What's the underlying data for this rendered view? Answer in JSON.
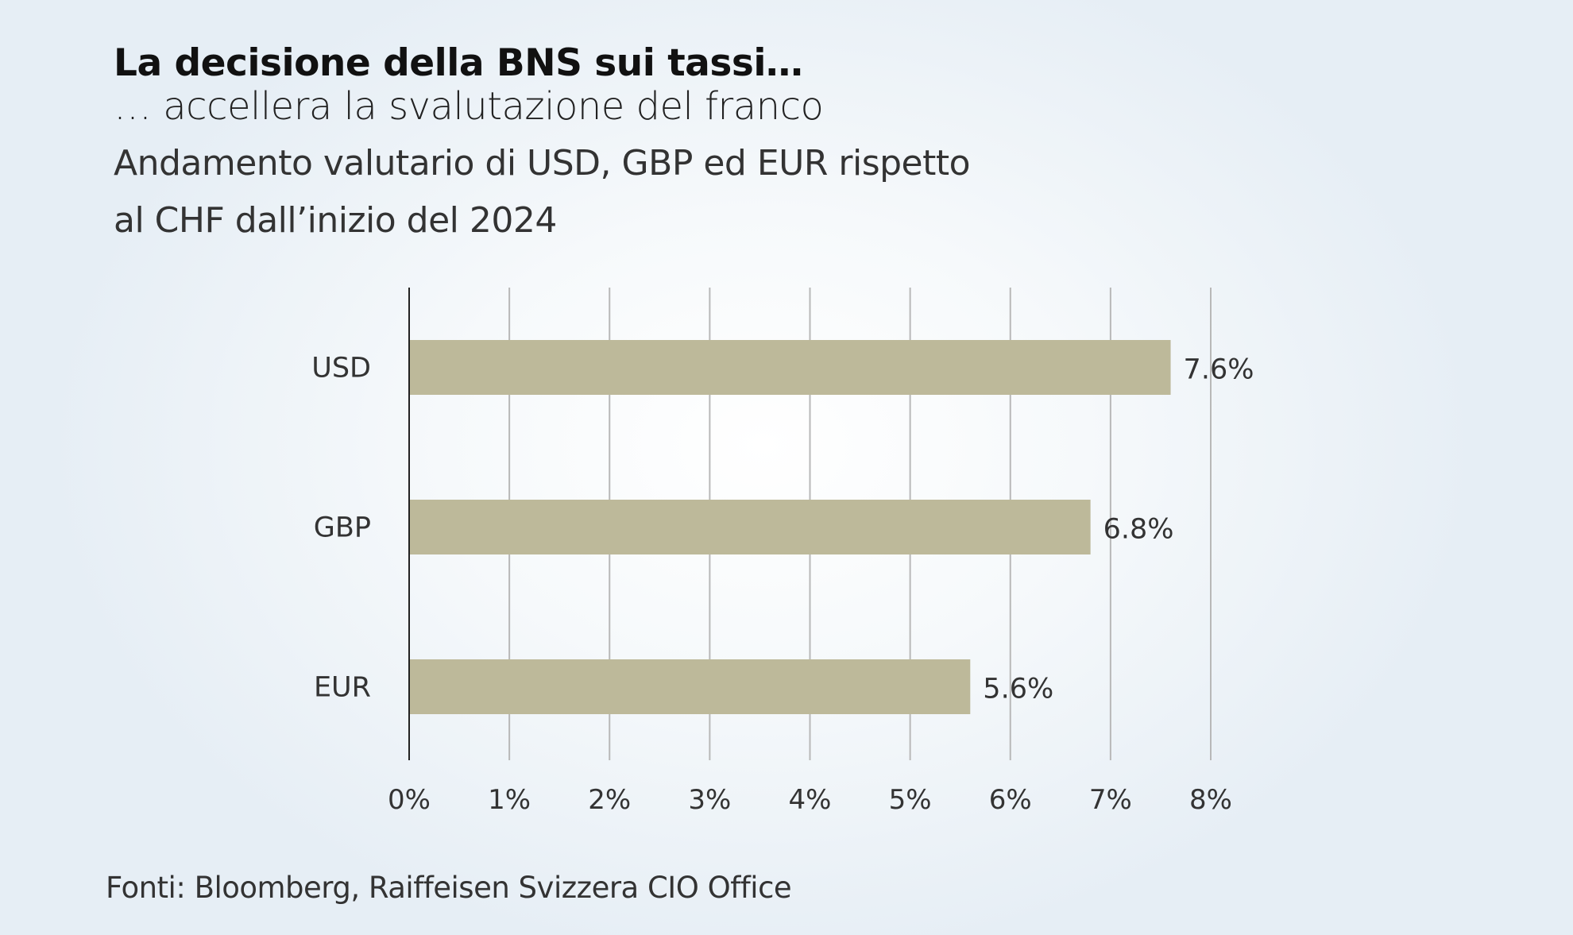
{
  "title": "La decisione della BNS sui tassi…",
  "subtitle": "… accellera la svalutazione del franco",
  "description_line1": "Andamento valutario di USD, GBP ed EUR rispetto",
  "description_line2": "al CHF dall’inizio del 2024",
  "source": "Fonti: Bloomberg, Raiffeisen Svizzera CIO Office",
  "colors": {
    "bar": "#bdb99a",
    "grid": "#b8b8b8",
    "axis": "#222222"
  },
  "chart_data": {
    "type": "bar",
    "orientation": "horizontal",
    "categories": [
      "USD",
      "GBP",
      "EUR"
    ],
    "values": [
      7.6,
      6.8,
      5.6
    ],
    "data_labels": [
      "7.6%",
      "6.8%",
      "5.6%"
    ],
    "xlim": [
      0,
      8
    ],
    "x_ticks": [
      0,
      1,
      2,
      3,
      4,
      5,
      6,
      7,
      8
    ],
    "x_tick_labels": [
      "0%",
      "1%",
      "2%",
      "3%",
      "4%",
      "5%",
      "6%",
      "7%",
      "8%"
    ],
    "grid": true,
    "xlabel": "",
    "ylabel": ""
  }
}
